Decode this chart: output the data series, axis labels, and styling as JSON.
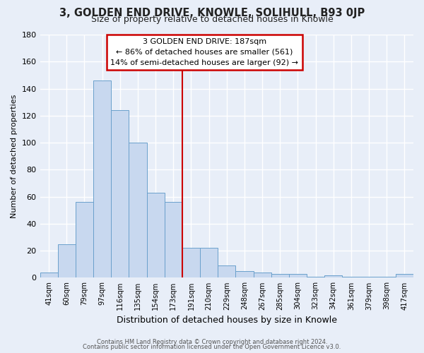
{
  "title": "3, GOLDEN END DRIVE, KNOWLE, SOLIHULL, B93 0JP",
  "subtitle": "Size of property relative to detached houses in Knowle",
  "xlabel": "Distribution of detached houses by size in Knowle",
  "ylabel": "Number of detached properties",
  "bar_labels": [
    "41sqm",
    "60sqm",
    "79sqm",
    "97sqm",
    "116sqm",
    "135sqm",
    "154sqm",
    "173sqm",
    "191sqm",
    "210sqm",
    "229sqm",
    "248sqm",
    "267sqm",
    "285sqm",
    "304sqm",
    "323sqm",
    "342sqm",
    "361sqm",
    "379sqm",
    "398sqm",
    "417sqm"
  ],
  "bar_values": [
    4,
    25,
    56,
    146,
    124,
    100,
    63,
    56,
    22,
    22,
    9,
    5,
    4,
    3,
    3,
    1,
    2,
    1,
    1,
    1,
    3
  ],
  "bar_color": "#c8d8ef",
  "bar_edge_color": "#6aa0cc",
  "vline_color": "#cc0000",
  "annotation_title": "3 GOLDEN END DRIVE: 187sqm",
  "annotation_line1": "← 86% of detached houses are smaller (561)",
  "annotation_line2": "14% of semi-detached houses are larger (92) →",
  "annotation_box_color": "#ffffff",
  "annotation_box_edge": "#cc0000",
  "ylim": [
    0,
    180
  ],
  "yticks": [
    0,
    20,
    40,
    60,
    80,
    100,
    120,
    140,
    160,
    180
  ],
  "footer1": "Contains HM Land Registry data © Crown copyright and database right 2024.",
  "footer2": "Contains public sector information licensed under the Open Government Licence v3.0.",
  "bg_color": "#e8eef8",
  "grid_color": "#ffffff",
  "title_fontsize": 10.5,
  "subtitle_fontsize": 9
}
